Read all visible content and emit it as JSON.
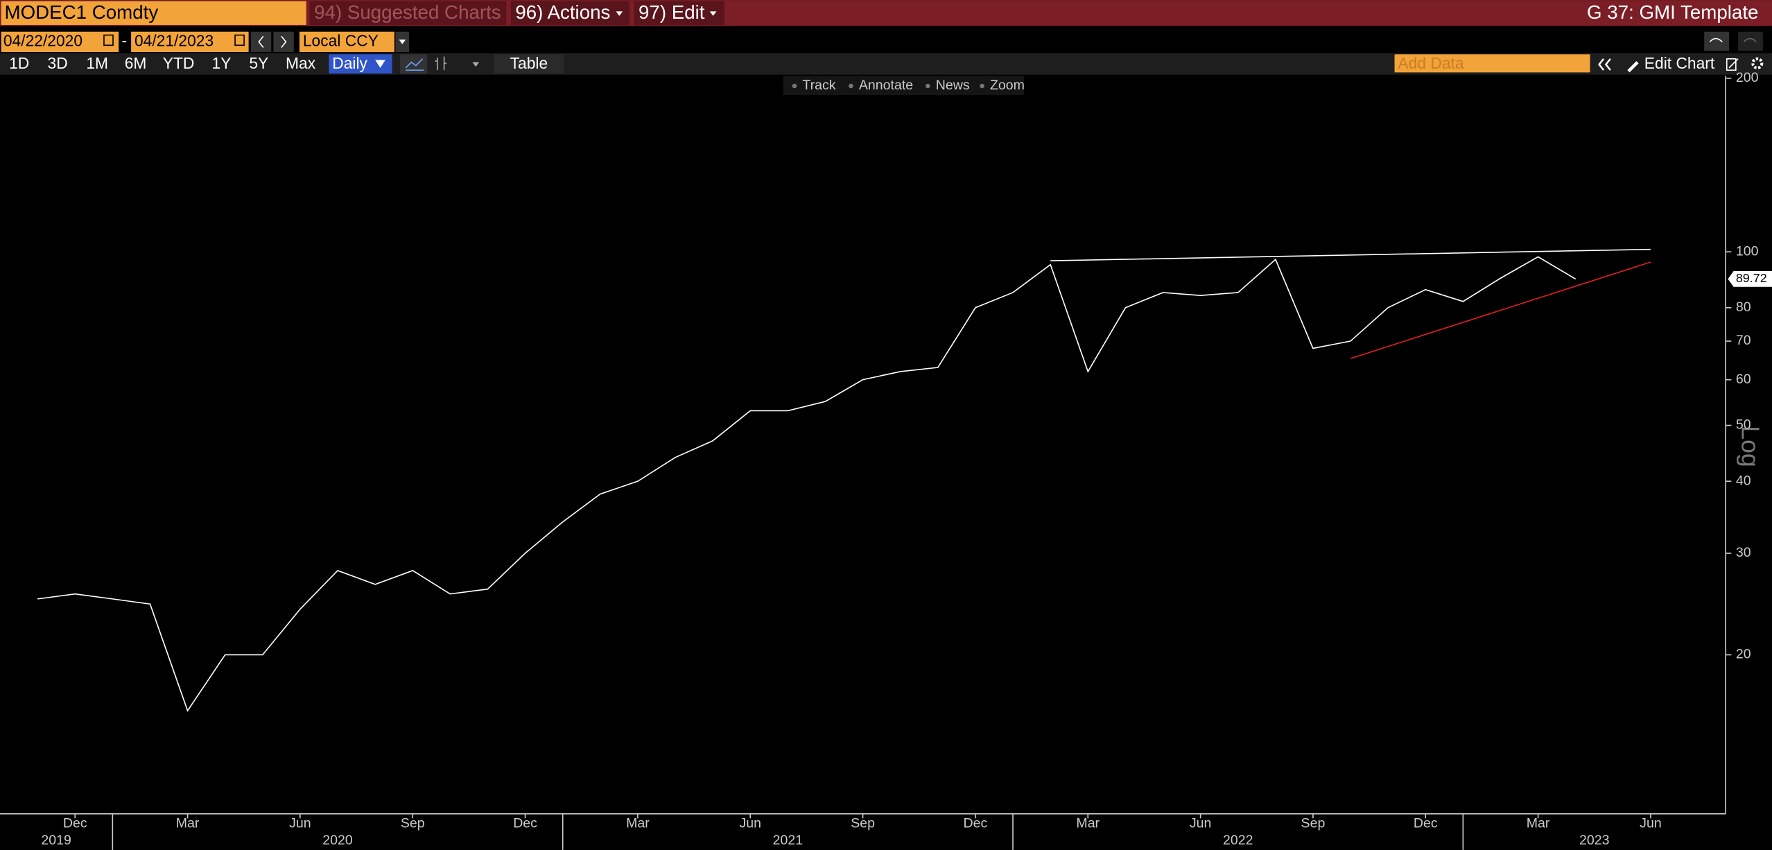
{
  "header": {
    "ticker": "MODEC1 Comdty",
    "menu": [
      "94) Suggested Charts",
      "96) Actions",
      "97) Edit"
    ],
    "template": "G 37: GMI Template"
  },
  "controls": {
    "start_date": "04/22/2020",
    "separator": "-",
    "end_date": "04/21/2023",
    "currency": "Local CCY",
    "periods": [
      "1D",
      "3D",
      "1M",
      "6M",
      "YTD",
      "1Y",
      "5Y",
      "Max"
    ],
    "frequency": "Daily",
    "table": "Table",
    "add_data": "Add Data",
    "edit_chart": "Edit Chart",
    "tools": [
      "Track",
      "Annotate",
      "News",
      "Zoom"
    ]
  },
  "chart_data": {
    "type": "line",
    "log_scale": true,
    "scale_label": "Log",
    "xlim": [
      "2019-10",
      "2023-08"
    ],
    "x": [
      "2019-11",
      "2019-12",
      "2020-01",
      "2020-02",
      "2020-03",
      "2020-04",
      "2020-05",
      "2020-06",
      "2020-07",
      "2020-08",
      "2020-09",
      "2020-10",
      "2020-11",
      "2020-12",
      "2021-01",
      "2021-02",
      "2021-03",
      "2021-04",
      "2021-05",
      "2021-06",
      "2021-07",
      "2021-08",
      "2021-09",
      "2021-10",
      "2021-11",
      "2021-12",
      "2022-01",
      "2022-02",
      "2022-03",
      "2022-04",
      "2022-05",
      "2022-06",
      "2022-07",
      "2022-08",
      "2022-09",
      "2022-10",
      "2022-11",
      "2022-12",
      "2023-01",
      "2023-02",
      "2023-03",
      "2023-04"
    ],
    "series": [
      {
        "color": "#ffffff",
        "values": [
          25,
          25.5,
          25,
          24.5,
          16,
          20,
          20,
          24,
          28,
          26.5,
          28,
          25.5,
          26,
          30,
          34,
          38,
          40,
          44,
          47,
          53,
          53,
          55,
          60,
          62,
          63,
          80,
          85,
          95,
          62,
          80,
          85,
          84,
          85,
          97,
          68,
          70,
          80,
          86,
          82,
          90,
          98,
          89.72
        ]
      }
    ],
    "trendlines": [
      {
        "color": "#ffffff",
        "x": [
          "2022-02",
          "2023-06"
        ],
        "values": [
          96.5,
          101
        ]
      },
      {
        "color": "#e02020",
        "x": [
          "2022-10",
          "2023-06"
        ],
        "values": [
          65.3,
          96
        ]
      }
    ],
    "ylim": [
      10.6,
      202
    ],
    "yticks": [
      20,
      30,
      40,
      50,
      60,
      70,
      80,
      100,
      200
    ],
    "xticks": [
      {
        "value": "2019-12",
        "label": "Dec"
      },
      {
        "value": "2020-03",
        "label": "Mar"
      },
      {
        "value": "2020-06",
        "label": "Jun"
      },
      {
        "value": "2020-09",
        "label": "Sep"
      },
      {
        "value": "2020-12",
        "label": "Dec"
      },
      {
        "value": "2021-03",
        "label": "Mar"
      },
      {
        "value": "2021-06",
        "label": "Jun"
      },
      {
        "value": "2021-09",
        "label": "Sep"
      },
      {
        "value": "2021-12",
        "label": "Dec"
      },
      {
        "value": "2022-03",
        "label": "Mar"
      },
      {
        "value": "2022-06",
        "label": "Jun"
      },
      {
        "value": "2022-09",
        "label": "Sep"
      },
      {
        "value": "2022-12",
        "label": "Dec"
      },
      {
        "value": "2023-03",
        "label": "Mar"
      },
      {
        "value": "2023-06",
        "label": "Jun"
      }
    ],
    "years": [
      "2019",
      "2020",
      "2021",
      "2022",
      "2023"
    ]
  }
}
